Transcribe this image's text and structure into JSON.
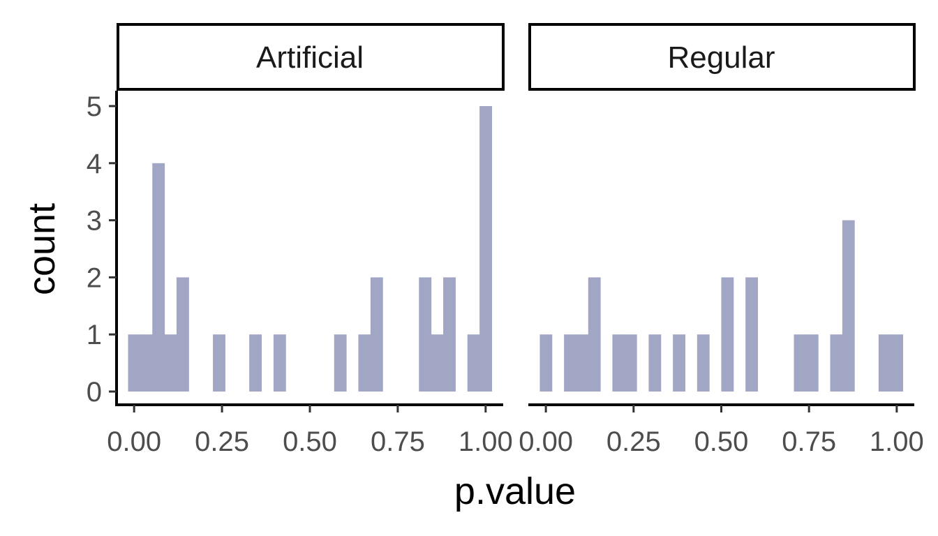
{
  "chart_data": {
    "type": "bar",
    "subtype": "faceted-histogram",
    "xlabel": "p.value",
    "ylabel": "count",
    "xlim": [
      -0.05,
      1.05
    ],
    "ylim": [
      0,
      5
    ],
    "bin_width": 0.0345,
    "bar_color": "#A0A6C4",
    "x_ticks": [
      "0.00",
      "0.25",
      "0.50",
      "0.75",
      "1.00"
    ],
    "x_tick_values": [
      0,
      0.25,
      0.5,
      0.75,
      1.0
    ],
    "y_ticks": [
      "0",
      "1",
      "2",
      "3",
      "4",
      "5"
    ],
    "y_tick_values": [
      0,
      1,
      2,
      3,
      4,
      5
    ],
    "grid": false,
    "facets": [
      {
        "name": "Artificial",
        "bins": [
          {
            "x": 0.0,
            "count": 1
          },
          {
            "x": 0.0345,
            "count": 1
          },
          {
            "x": 0.069,
            "count": 4
          },
          {
            "x": 0.1034,
            "count": 1
          },
          {
            "x": 0.1379,
            "count": 2
          },
          {
            "x": 0.2414,
            "count": 1
          },
          {
            "x": 0.3448,
            "count": 1
          },
          {
            "x": 0.4138,
            "count": 1
          },
          {
            "x": 0.5862,
            "count": 1
          },
          {
            "x": 0.6552,
            "count": 1
          },
          {
            "x": 0.6897,
            "count": 2
          },
          {
            "x": 0.8276,
            "count": 2
          },
          {
            "x": 0.8621,
            "count": 1
          },
          {
            "x": 0.8966,
            "count": 2
          },
          {
            "x": 0.9655,
            "count": 1
          },
          {
            "x": 1.0,
            "count": 5
          }
        ]
      },
      {
        "name": "Regular",
        "bins": [
          {
            "x": 0.0,
            "count": 1
          },
          {
            "x": 0.069,
            "count": 1
          },
          {
            "x": 0.1034,
            "count": 1
          },
          {
            "x": 0.1379,
            "count": 2
          },
          {
            "x": 0.2069,
            "count": 1
          },
          {
            "x": 0.2414,
            "count": 1
          },
          {
            "x": 0.3103,
            "count": 1
          },
          {
            "x": 0.3793,
            "count": 1
          },
          {
            "x": 0.4483,
            "count": 1
          },
          {
            "x": 0.5172,
            "count": 2
          },
          {
            "x": 0.5862,
            "count": 2
          },
          {
            "x": 0.7241,
            "count": 1
          },
          {
            "x": 0.7586,
            "count": 1
          },
          {
            "x": 0.8276,
            "count": 1
          },
          {
            "x": 0.8621,
            "count": 3
          },
          {
            "x": 0.9655,
            "count": 1
          },
          {
            "x": 1.0,
            "count": 1
          }
        ]
      }
    ]
  }
}
